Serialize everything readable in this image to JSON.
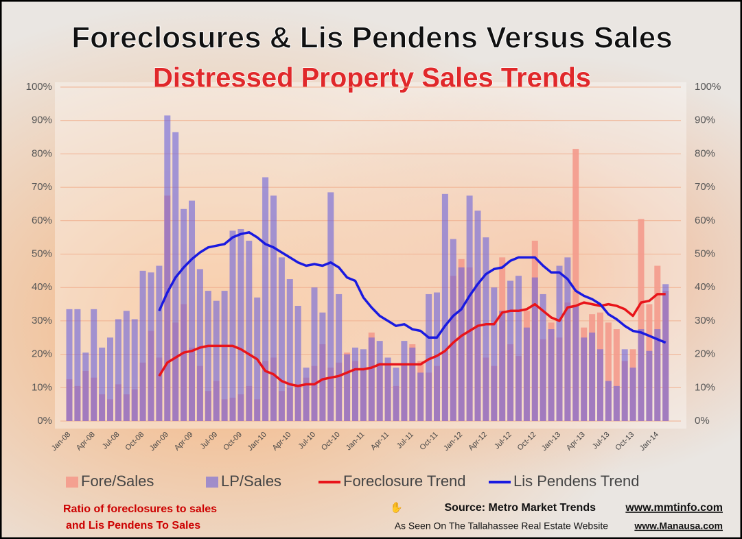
{
  "chart_data": {
    "type": "combo",
    "title": "Foreclosures & Lis Pendens Versus Sales",
    "subtitle": "Distressed Property Sales Trends",
    "categories": [
      "Jan-08",
      null,
      null,
      "Apr-08",
      null,
      null,
      "Jul-08",
      null,
      null,
      "Oct-08",
      null,
      null,
      "Jan-09",
      null,
      null,
      "Apr-09",
      null,
      null,
      "Jul-09",
      null,
      null,
      "Oct-09",
      null,
      null,
      "Jan-10",
      null,
      null,
      "Apr-10",
      null,
      null,
      "Jul-10",
      null,
      null,
      "Oct-10",
      null,
      null,
      "Jan-11",
      null,
      null,
      "Apr-11",
      null,
      null,
      "Jul-11",
      null,
      null,
      "Oct-11",
      null,
      null,
      "Jan-12",
      null,
      null,
      "Apr-12",
      null,
      null,
      "Jul-12",
      null,
      null,
      "Oct-12",
      null,
      null,
      "Jan-13",
      null,
      null,
      "Apr-13",
      null,
      null,
      "Jul-13",
      null,
      null,
      "Oct-13",
      null,
      null,
      "Jan-14",
      null
    ],
    "series": [
      {
        "name": "Fore/Sales",
        "kind": "bar",
        "color": "#f49a8c",
        "values": [
          12.5,
          10.5,
          15,
          13,
          8,
          6.5,
          11,
          8,
          9.5,
          17.5,
          27,
          19,
          67.5,
          29.5,
          35,
          22,
          16.5,
          9,
          12,
          6.5,
          7,
          8,
          10.5,
          6.5,
          18,
          19,
          9,
          10,
          11,
          13,
          16.5,
          23,
          16,
          17.5,
          20.5,
          18,
          15.5,
          26.5,
          17.5,
          17,
          10.5,
          17,
          23,
          18,
          14.5,
          16.5,
          21,
          43.5,
          48.5,
          46,
          41,
          19,
          16.5,
          49,
          23,
          19.5,
          33,
          54,
          24.5,
          29.5,
          25,
          35.5,
          81.5,
          28,
          32,
          32.5,
          29.5,
          27.5,
          18,
          21.5,
          60.5,
          35,
          46.5,
          39
        ]
      },
      {
        "name": "LP/Sales",
        "kind": "bar",
        "color": "#6a62dc",
        "values": [
          33.5,
          33.5,
          20.5,
          33.5,
          22,
          25,
          30.5,
          33,
          30.5,
          45,
          44.5,
          46.5,
          91.5,
          86.5,
          63.5,
          66,
          45.5,
          39,
          36,
          39,
          57,
          57.5,
          54,
          37,
          73,
          67.5,
          49,
          42.5,
          34.5,
          16,
          40,
          32.5,
          68.5,
          38,
          20,
          22,
          21.5,
          25,
          24,
          19,
          16,
          24,
          22,
          14.5,
          38,
          38.5,
          68,
          54.5,
          46,
          67.5,
          63,
          55,
          40,
          33,
          42,
          43.5,
          28,
          43,
          38,
          27.5,
          46.5,
          49,
          34.5,
          25,
          26.5,
          21.5,
          12,
          10.5,
          21.5,
          16,
          27.5,
          21,
          27.5,
          41
        ]
      },
      {
        "name": "Foreclosure Trend",
        "kind": "line",
        "color": "#e8141a",
        "values": [
          null,
          null,
          null,
          null,
          null,
          null,
          null,
          null,
          null,
          null,
          null,
          13.5,
          17.5,
          19,
          20.5,
          21,
          22,
          22.5,
          22.5,
          22.5,
          22.5,
          21.5,
          20,
          18.5,
          15,
          14,
          12,
          11,
          10.5,
          11,
          11,
          12.5,
          13,
          13.5,
          14.5,
          15.5,
          15.5,
          16,
          17,
          17,
          17,
          17,
          17,
          17,
          18.5,
          19.5,
          21,
          23.5,
          25.5,
          27,
          28.5,
          29,
          29,
          32.5,
          33,
          33,
          33.5,
          35,
          33,
          31,
          30,
          34,
          34.5,
          35.5,
          35,
          34.5,
          35,
          34.5,
          33.5,
          31.5,
          35.5,
          36,
          38,
          38
        ]
      },
      {
        "name": "Lis Pendens Trend",
        "kind": "line",
        "color": "#1a1ae0",
        "values": [
          null,
          null,
          null,
          null,
          null,
          null,
          null,
          null,
          null,
          null,
          null,
          33,
          38.5,
          43,
          46,
          48.5,
          50.5,
          52,
          52.5,
          53,
          55,
          56,
          56.5,
          55,
          53,
          52,
          50.5,
          49,
          47.5,
          46.5,
          47,
          46.5,
          47.5,
          46,
          43,
          42,
          37,
          34,
          31.5,
          30,
          28.5,
          29,
          27.5,
          27,
          25,
          25,
          28.5,
          31.5,
          33.5,
          37.5,
          41,
          44,
          45.5,
          46,
          48,
          49,
          49,
          49,
          46.5,
          44.5,
          44.5,
          42.5,
          39,
          37.5,
          36.5,
          35,
          32,
          30.5,
          28.5,
          27,
          26.5,
          25.5,
          24.5,
          23.5
        ]
      }
    ],
    "ylim": [
      0,
      100
    ],
    "yticks": [
      {
        "value": 0,
        "label": "0%"
      },
      {
        "value": 10,
        "label": "10%"
      },
      {
        "value": 20,
        "label": "20%"
      },
      {
        "value": 30,
        "label": "30%"
      },
      {
        "value": 40,
        "label": "40%"
      },
      {
        "value": 50,
        "label": "50%"
      },
      {
        "value": 60,
        "label": "60%"
      },
      {
        "value": 70,
        "label": "70%"
      },
      {
        "value": 80,
        "label": "80%"
      },
      {
        "value": 90,
        "label": "90%"
      },
      {
        "value": 100,
        "label": "100%"
      }
    ],
    "y2lim": [
      0,
      100
    ],
    "y2ticks": [
      {
        "value": 0,
        "label": "0%"
      },
      {
        "value": 10,
        "label": "10%"
      },
      {
        "value": 20,
        "label": "20%"
      },
      {
        "value": 30,
        "label": "30%"
      },
      {
        "value": 40,
        "label": "40%"
      },
      {
        "value": 50,
        "label": "50%"
      },
      {
        "value": 60,
        "label": "60%"
      },
      {
        "value": 70,
        "label": "70%"
      },
      {
        "value": 80,
        "label": "80%"
      },
      {
        "value": 90,
        "label": "90%"
      },
      {
        "value": 100,
        "label": "100%"
      }
    ],
    "grid": true,
    "legend": "bottom"
  },
  "footer": {
    "note": [
      "Ratio of foreclosures to sales",
      "and Lis Pendens To Sales"
    ],
    "source": "Source:  Metro Market Trends",
    "source_url": "www.mmtinfo.com",
    "seen_on": "As Seen On The Tallahassee Real Estate Website",
    "seen_url": "www.Manausa.com"
  }
}
